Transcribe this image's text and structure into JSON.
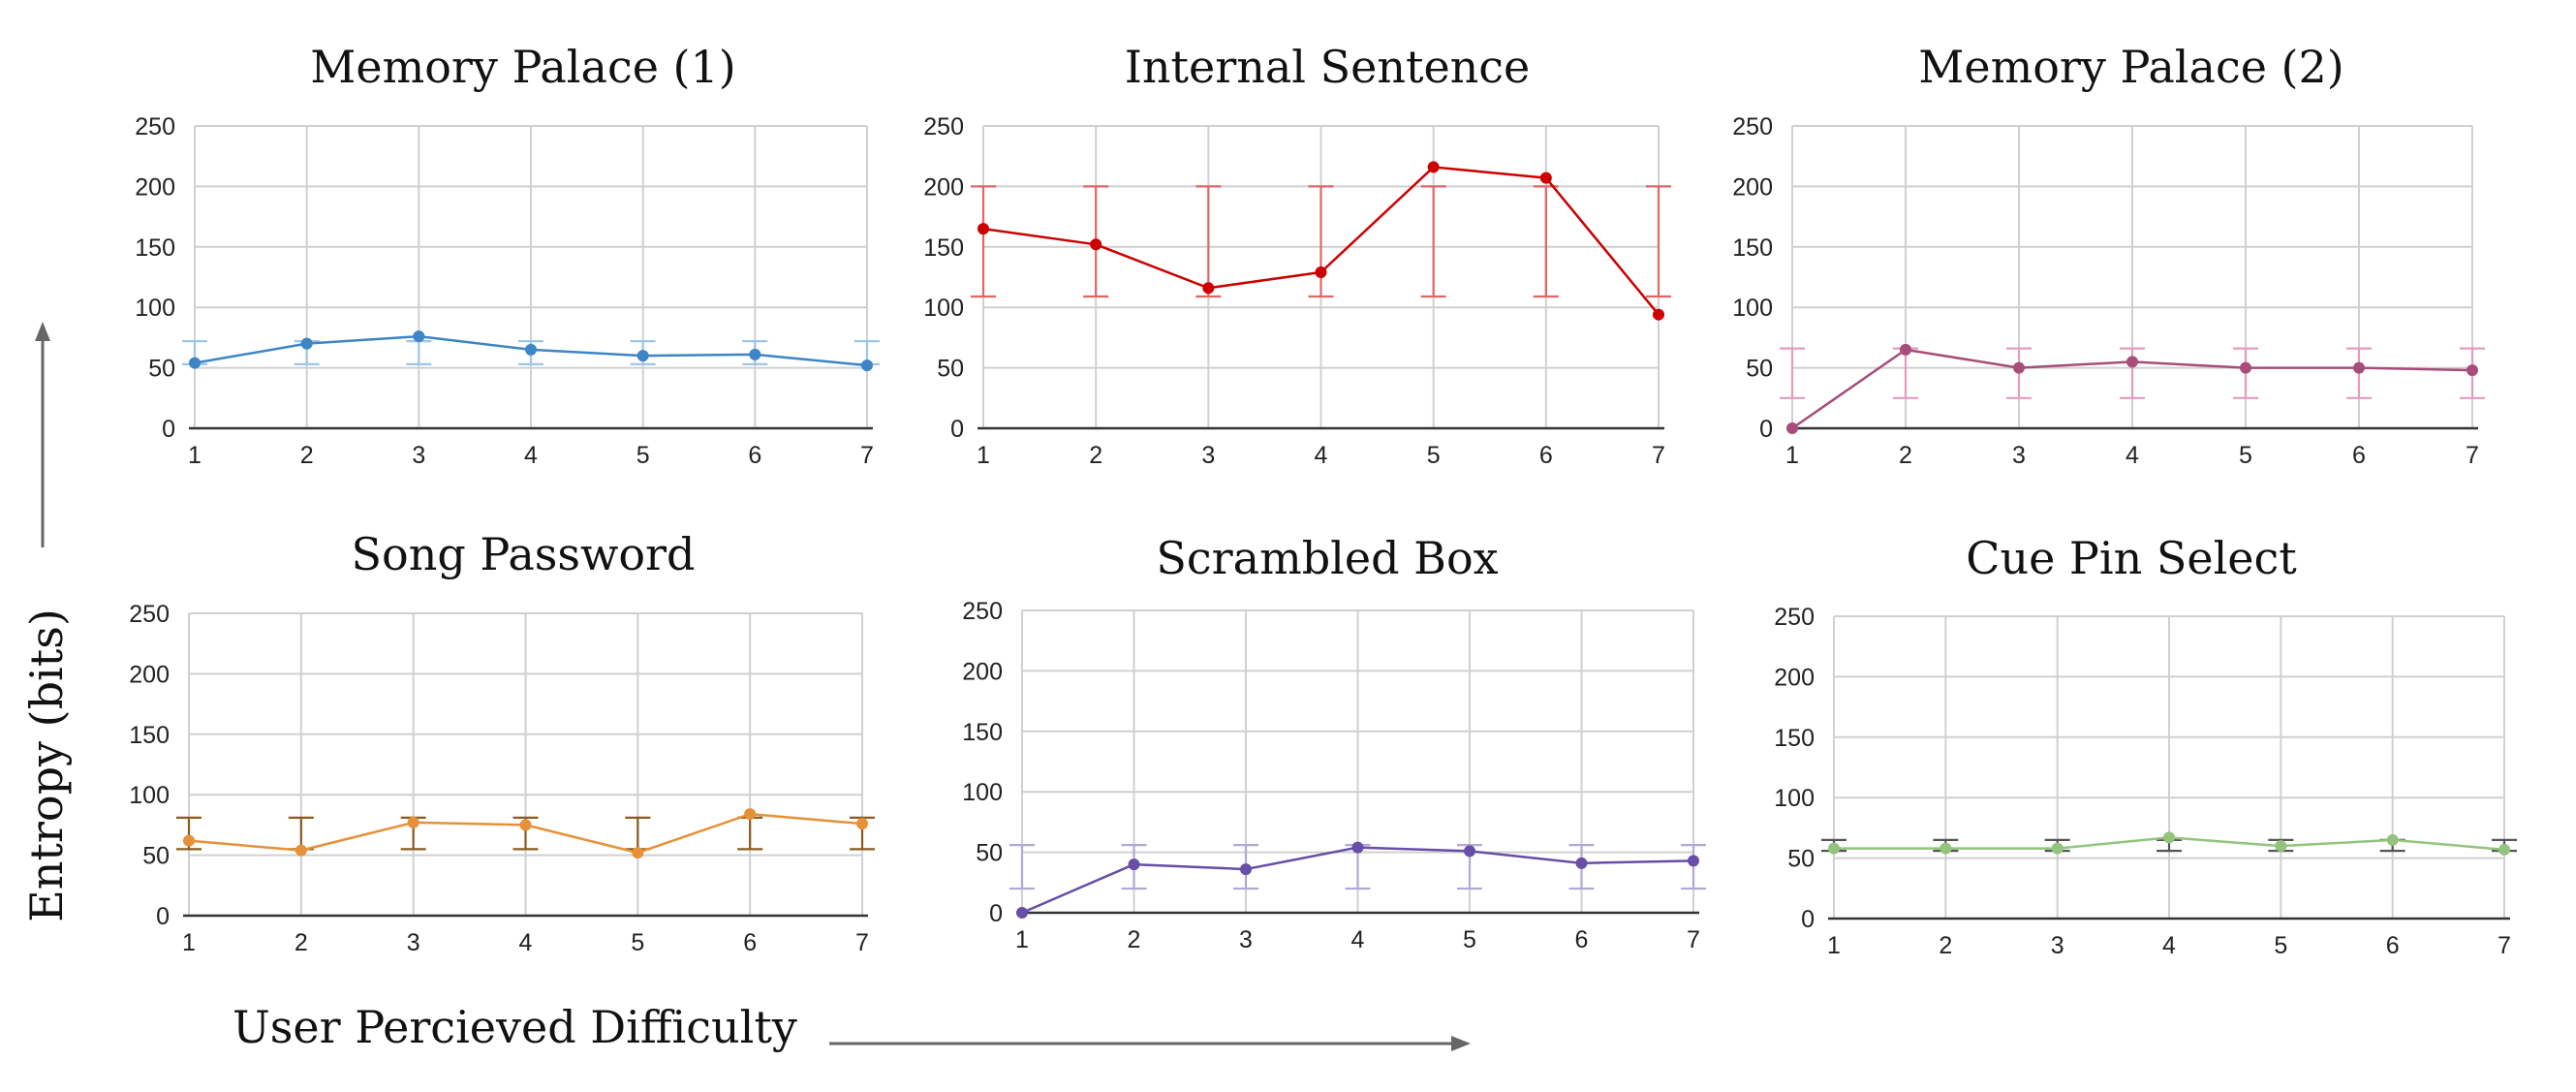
{
  "figure": {
    "ylabel": "Entropy (bits)",
    "xlabel": "User Percieved Difficulty"
  },
  "chart_data": [
    {
      "type": "line",
      "title": "Memory Palace (1)",
      "x": [
        1,
        2,
        3,
        4,
        5,
        6,
        7
      ],
      "values": [
        54,
        70,
        76,
        65,
        60,
        61,
        52
      ],
      "error_low": [
        53,
        53,
        53,
        53,
        53,
        53,
        53
      ],
      "error_high": [
        72,
        72,
        72,
        72,
        72,
        72,
        72
      ],
      "color": "#3d85c6",
      "error_color": "#9fc5e8",
      "ylim": [
        0,
        250
      ],
      "yticks": [
        0,
        50,
        100,
        150,
        200,
        250
      ],
      "xticks": [
        1,
        2,
        3,
        4,
        5,
        6,
        7
      ],
      "grid": true
    },
    {
      "type": "line",
      "title": "Internal Sentence",
      "x": [
        1,
        2,
        3,
        4,
        5,
        6,
        7
      ],
      "values": [
        165,
        152,
        116,
        129,
        216,
        207,
        94
      ],
      "error_low": [
        109,
        109,
        109,
        109,
        109,
        109,
        109
      ],
      "error_high": [
        200,
        200,
        200,
        200,
        200,
        200,
        200
      ],
      "color": "#cc0000",
      "error_color": "#e06666",
      "ylim": [
        0,
        250
      ],
      "yticks": [
        0,
        50,
        100,
        150,
        200,
        250
      ],
      "xticks": [
        1,
        2,
        3,
        4,
        5,
        6,
        7
      ],
      "grid": true
    },
    {
      "type": "line",
      "title": "Memory Palace (2)",
      "x": [
        1,
        2,
        3,
        4,
        5,
        6,
        7
      ],
      "values": [
        0,
        65,
        50,
        55,
        50,
        50,
        48
      ],
      "error_low": [
        25,
        25,
        25,
        25,
        25,
        25,
        25
      ],
      "error_high": [
        66,
        66,
        66,
        66,
        66,
        66,
        66
      ],
      "color": "#a64d79",
      "error_color": "#e59bbf",
      "ylim": [
        0,
        250
      ],
      "yticks": [
        0,
        50,
        100,
        150,
        200,
        250
      ],
      "xticks": [
        1,
        2,
        3,
        4,
        5,
        6,
        7
      ],
      "grid": true
    },
    {
      "type": "line",
      "title": "Song Password",
      "x": [
        1,
        2,
        3,
        4,
        5,
        6,
        7
      ],
      "values": [
        62,
        54,
        77,
        75,
        52,
        84,
        76
      ],
      "error_low": [
        55,
        55,
        55,
        55,
        55,
        55,
        55
      ],
      "error_high": [
        81,
        81,
        81,
        81,
        81,
        81,
        81
      ],
      "color": "#e69138",
      "error_color": "#8a5a1e",
      "ylim": [
        0,
        250
      ],
      "yticks": [
        0,
        50,
        100,
        150,
        200,
        250
      ],
      "xticks": [
        1,
        2,
        3,
        4,
        5,
        6,
        7
      ],
      "grid": true
    },
    {
      "type": "line",
      "title": "Scrambled Box",
      "x": [
        1,
        2,
        3,
        4,
        5,
        6,
        7
      ],
      "values": [
        0,
        40,
        36,
        54,
        51,
        41,
        43
      ],
      "error_low": [
        20,
        20,
        20,
        20,
        20,
        20,
        20
      ],
      "error_high": [
        56,
        56,
        56,
        56,
        56,
        56,
        56
      ],
      "color": "#674ea7",
      "error_color": "#b4a7d6",
      "ylim": [
        0,
        250
      ],
      "yticks": [
        0,
        50,
        100,
        150,
        200,
        250
      ],
      "xticks": [
        1,
        2,
        3,
        4,
        5,
        6,
        7
      ],
      "grid": true
    },
    {
      "type": "line",
      "title": "Cue Pin Select",
      "x": [
        1,
        2,
        3,
        4,
        5,
        6,
        7
      ],
      "values": [
        58,
        58,
        58,
        67,
        60,
        65,
        57
      ],
      "error_low": [
        56,
        56,
        56,
        56,
        56,
        56,
        56
      ],
      "error_high": [
        65,
        65,
        65,
        65,
        65,
        65,
        65
      ],
      "color": "#93c47d",
      "error_color": "#555555",
      "ylim": [
        0,
        250
      ],
      "yticks": [
        0,
        50,
        100,
        150,
        200,
        250
      ],
      "xticks": [
        1,
        2,
        3,
        4,
        5,
        6,
        7
      ],
      "grid": true
    }
  ]
}
